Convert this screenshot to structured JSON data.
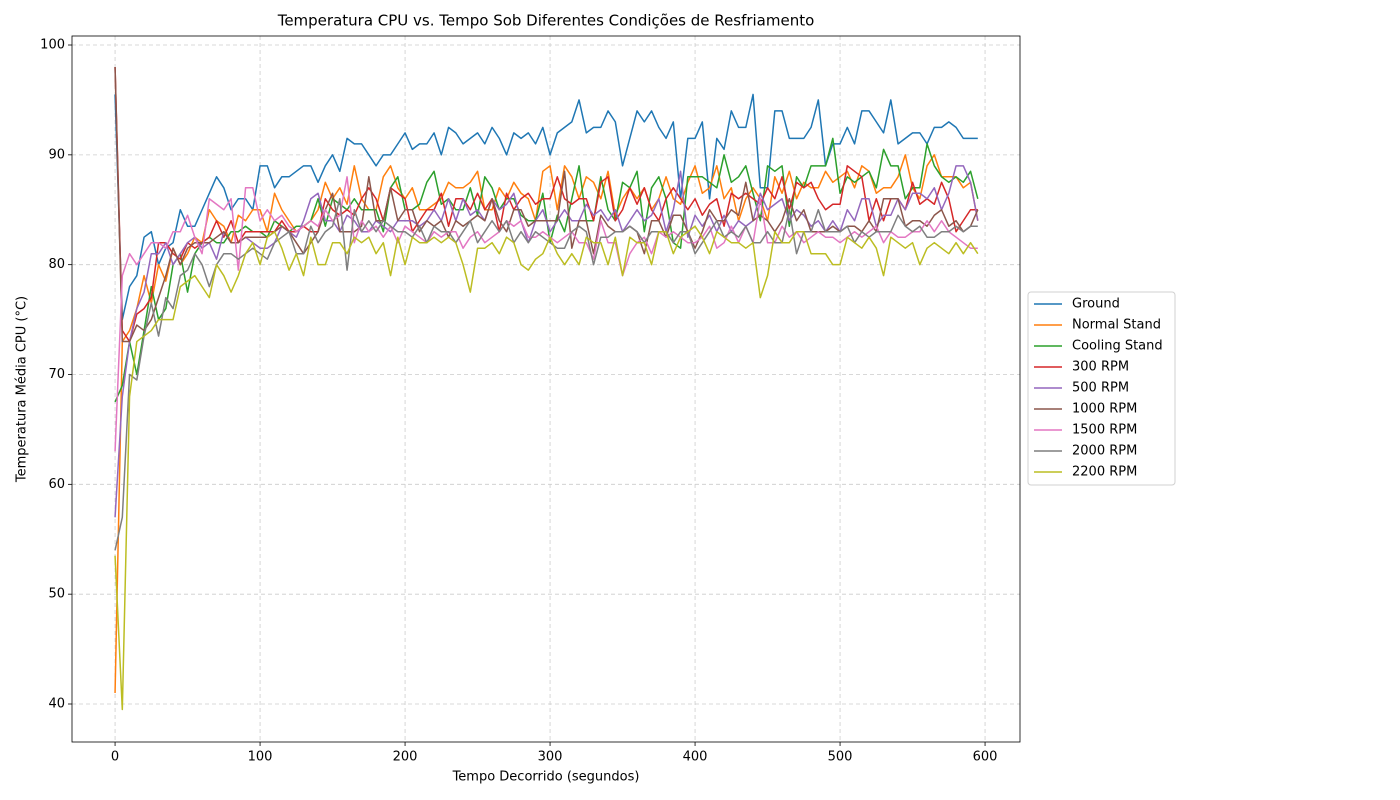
{
  "chart_data": {
    "type": "line",
    "title": "Temperatura CPU vs. Tempo Sob Diferentes Condições de Resfriamento",
    "xlabel": "Tempo Decorrido (segundos)",
    "ylabel": "Temperatura Média CPU (°C)",
    "xlim": [
      -29.7,
      624.1
    ],
    "ylim": [
      36.54,
      100.82
    ],
    "xticks": [
      0,
      100,
      200,
      300,
      400,
      500,
      600
    ],
    "yticks": [
      40,
      50,
      60,
      70,
      80,
      90,
      100
    ],
    "grid": true,
    "legend": "outside right",
    "x": [
      0,
      5,
      10,
      15,
      20,
      25,
      30,
      35,
      40,
      45,
      50,
      55,
      60,
      65,
      70,
      75,
      80,
      85,
      90,
      95,
      100,
      105,
      110,
      115,
      120,
      125,
      130,
      135,
      140,
      145,
      150,
      155,
      160,
      165,
      170,
      175,
      180,
      185,
      190,
      195,
      200,
      205,
      210,
      215,
      220,
      225,
      230,
      235,
      240,
      245,
      250,
      255,
      260,
      265,
      270,
      275,
      280,
      285,
      290,
      295,
      300,
      305,
      310,
      315,
      320,
      325,
      330,
      335,
      340,
      345,
      350,
      355,
      360,
      365,
      370,
      375,
      380,
      385,
      390,
      395,
      400,
      405,
      410,
      415,
      420,
      425,
      430,
      435,
      440,
      445,
      450,
      455,
      460,
      465,
      470,
      475,
      480,
      485,
      490,
      495,
      500,
      505,
      510,
      515,
      520,
      525,
      530,
      535,
      540,
      545,
      550,
      555,
      560,
      565,
      570,
      575,
      580,
      585,
      590,
      595
    ],
    "series": [
      {
        "name": "Ground",
        "color": "#1f77b4",
        "values": [
          95.5,
          75,
          78,
          79,
          82.5,
          83,
          80,
          81.5,
          82,
          85,
          83.5,
          83.5,
          85,
          86.5,
          88,
          87,
          85,
          86,
          86,
          85,
          89,
          89,
          87,
          88,
          88,
          88.5,
          89,
          89,
          87.5,
          89,
          90,
          88.5,
          91.5,
          91,
          91,
          90,
          89,
          90,
          90,
          91,
          92,
          90.5,
          91,
          91,
          92,
          90,
          92.5,
          92,
          91,
          91.5,
          92,
          91,
          92.5,
          91.5,
          90,
          92,
          91.5,
          92,
          91,
          92.5,
          90,
          92,
          92.5,
          93,
          95,
          92,
          92.5,
          92.5,
          94,
          93,
          89,
          91.5,
          94,
          93,
          94,
          92.5,
          91.5,
          93,
          86,
          91.5,
          91.5,
          93,
          86,
          91.5,
          90.5,
          94,
          92.5,
          92.5,
          95.5,
          87,
          87,
          94,
          94,
          91.5,
          91.5,
          91.5,
          92.5,
          95,
          89,
          91,
          91,
          92.5,
          91,
          94,
          94,
          93,
          92,
          95,
          91,
          91.5,
          92,
          92,
          91,
          92.5,
          92.5,
          93,
          92.5,
          91.5,
          91.5,
          91.5
        ]
      },
      {
        "name": "Normal Stand",
        "color": "#ff7f0e",
        "values": [
          41,
          73,
          74,
          76,
          79,
          76.5,
          80,
          78.5,
          81.5,
          80,
          81,
          82.5,
          82,
          85,
          84,
          83.5,
          82,
          84.5,
          84,
          85,
          85,
          83,
          86.5,
          85,
          84,
          83,
          83.5,
          84,
          85,
          87.5,
          86,
          87,
          85.5,
          89,
          86,
          85,
          85,
          88,
          89,
          87,
          86,
          87,
          85,
          85,
          85.5,
          86,
          87.5,
          87,
          87,
          87.5,
          88.5,
          85,
          85,
          87,
          86,
          87.5,
          86.5,
          86,
          84,
          88.5,
          89,
          85,
          89,
          88,
          86,
          88,
          87.5,
          86,
          88.5,
          84.5,
          86,
          87,
          86,
          87,
          85,
          86,
          88,
          86,
          85.5,
          87.5,
          89,
          86.5,
          87,
          89,
          86,
          87,
          84,
          86,
          87,
          86,
          84,
          88,
          86.5,
          88.5,
          86,
          87.5,
          87,
          87,
          88.5,
          87.5,
          88,
          88.5,
          87,
          89,
          88.5,
          86.5,
          87,
          87,
          88,
          90,
          87,
          86,
          89,
          90,
          88,
          88,
          88,
          87,
          87.5,
          84
        ]
      },
      {
        "name": "Cooling Stand",
        "color": "#2ca02c",
        "values": [
          67.5,
          69,
          73,
          70,
          74,
          78,
          75,
          76,
          80,
          81,
          77.5,
          81,
          82,
          82.5,
          82,
          82,
          83,
          83,
          83.5,
          83,
          83,
          82.5,
          84,
          83.5,
          83,
          83.5,
          83.5,
          84,
          86,
          83.5,
          86,
          85.5,
          85,
          86,
          85,
          85,
          85,
          83,
          87,
          88,
          85,
          85,
          85.5,
          87.5,
          88.5,
          85.5,
          86,
          85,
          85,
          87,
          84.5,
          88,
          87,
          85,
          86,
          86,
          84.5,
          84,
          84,
          86.5,
          82,
          84.5,
          83,
          86,
          89,
          84,
          84,
          88,
          85,
          84,
          87.5,
          87,
          88.5,
          83,
          87,
          88,
          86,
          82,
          81.5,
          88,
          88,
          88,
          87.5,
          87,
          90,
          87.5,
          88,
          89,
          86.5,
          84,
          89,
          88.5,
          89,
          83.5,
          88,
          87,
          89,
          89,
          89,
          91.5,
          86.5,
          88,
          87.5,
          88,
          88.5,
          87,
          90.5,
          89,
          89,
          86,
          87,
          87,
          91,
          89,
          88,
          87.5,
          88,
          87.5,
          88.5,
          86
        ]
      },
      {
        "name": "300 RPM",
        "color": "#d62728",
        "values": [
          98,
          74,
          73,
          75.5,
          76,
          77,
          82,
          82,
          81,
          80.5,
          82,
          81.5,
          82,
          82.5,
          84,
          82.5,
          84,
          82,
          83,
          83,
          83,
          83,
          83,
          84,
          83,
          83,
          83.5,
          83,
          83,
          86,
          85,
          84.5,
          85,
          84.5,
          86,
          87,
          86,
          84,
          87,
          86.5,
          86,
          83,
          84,
          85,
          85,
          86.5,
          83.5,
          86,
          86,
          85,
          86.5,
          85,
          86,
          83,
          86.5,
          85,
          86,
          86.5,
          85.5,
          86,
          86,
          88,
          86,
          85.5,
          86,
          86,
          84,
          87.5,
          88,
          84,
          85,
          87,
          85.5,
          87,
          85,
          84,
          86,
          87,
          86,
          85,
          86,
          84.5,
          85.5,
          86,
          83.5,
          86.5,
          86,
          86.5,
          86,
          85.5,
          87,
          86,
          88,
          85,
          87.5,
          87,
          87.5,
          86,
          85,
          85.5,
          85.5,
          89,
          88.5,
          88,
          84,
          86,
          84,
          86,
          86,
          85,
          87.5,
          85.5,
          86,
          85.5,
          87.5,
          86,
          83,
          84,
          85,
          85
        ]
      },
      {
        "name": "500 RPM",
        "color": "#9467bd",
        "values": [
          57,
          68,
          73,
          76,
          77.5,
          81,
          81,
          82,
          80,
          81,
          82,
          82.5,
          81.5,
          82,
          80.5,
          83,
          82,
          82,
          82.5,
          82,
          81.5,
          81.5,
          82,
          83.5,
          83,
          82.5,
          84,
          86,
          86.5,
          84,
          84,
          83,
          84.5,
          84,
          83,
          83,
          84,
          83.5,
          83,
          84,
          84,
          84,
          83.5,
          84,
          85,
          84,
          86,
          84,
          86,
          84.5,
          85,
          84,
          86,
          85,
          85.5,
          86.5,
          84,
          82,
          84,
          85,
          83,
          84,
          85,
          84,
          84,
          85.5,
          84.5,
          85,
          84,
          85,
          83,
          84,
          85,
          84,
          84.5,
          86,
          83,
          85,
          88.5,
          82.5,
          84.5,
          83.5,
          84.5,
          83,
          84.5,
          83,
          84,
          83.5,
          84,
          86.5,
          85,
          85.5,
          86,
          84,
          85,
          84.5,
          83.5,
          84,
          83,
          84,
          83,
          85,
          84,
          86,
          86,
          83.5,
          84.5,
          84.5,
          86,
          85,
          86.5,
          86.5,
          86,
          87,
          85,
          86.5,
          89,
          89,
          87.5,
          84
        ]
      },
      {
        "name": "1000 RPM",
        "color": "#8c564b",
        "values": [
          98,
          73,
          73,
          74.5,
          74,
          75,
          77,
          79,
          81.5,
          80,
          81.5,
          82,
          82,
          82,
          82.5,
          83,
          82,
          82,
          82.5,
          82.5,
          82.5,
          82.5,
          83,
          83.5,
          83,
          82,
          81,
          82,
          83,
          85,
          86.5,
          83,
          83,
          83,
          83.5,
          88,
          84,
          84,
          87,
          84,
          85,
          85,
          83,
          84,
          83.5,
          84,
          82.5,
          84,
          83.5,
          84,
          84.5,
          84,
          86,
          84,
          83,
          85,
          85,
          83.5,
          84,
          84,
          84,
          84,
          88.5,
          81.5,
          84,
          84,
          81,
          84.5,
          83.5,
          83,
          83,
          83.5,
          83,
          81,
          84,
          84,
          82.5,
          84.5,
          84.5,
          83,
          81.5,
          83,
          85,
          84,
          84,
          85,
          84.5,
          87.5,
          84,
          84.5,
          84,
          83,
          84,
          86,
          84,
          85,
          83,
          83,
          83,
          83.5,
          83,
          83.5,
          83.5,
          83,
          84,
          83,
          86,
          86,
          86,
          83.5,
          84,
          84,
          83.5,
          84.5,
          85,
          83.5,
          84,
          83,
          83.5,
          85
        ]
      },
      {
        "name": "1500 RPM",
        "color": "#e377c2",
        "values": [
          63,
          79,
          81,
          80,
          81,
          82,
          82,
          81.5,
          83,
          83,
          84.5,
          82.5,
          81,
          86,
          85.5,
          85,
          86,
          79.5,
          87,
          87,
          84,
          85,
          84,
          84.5,
          83.5,
          83,
          83.5,
          84,
          83.5,
          85,
          84,
          84.5,
          88,
          82,
          84,
          83,
          83.5,
          82.5,
          83.5,
          82,
          83.5,
          83,
          82.5,
          82,
          83,
          82.5,
          83,
          83,
          81.5,
          82.5,
          83,
          82,
          82.5,
          83,
          84,
          83.5,
          84,
          82.5,
          82.5,
          83,
          82.5,
          82,
          82.5,
          83,
          82,
          82,
          80.5,
          84,
          82,
          82,
          79,
          81,
          82,
          82.5,
          81,
          83,
          82.5,
          83,
          82.5,
          82,
          82,
          82.5,
          83.5,
          81.5,
          82,
          83.5,
          82,
          83.5,
          82,
          86,
          82,
          82,
          83.5,
          82.5,
          83,
          82,
          82.5,
          83,
          82.5,
          82.5,
          82,
          82.5,
          83,
          82.5,
          83,
          83.5,
          82,
          83,
          82.5,
          82.5,
          83,
          83,
          84,
          83,
          84,
          83,
          82.5,
          82,
          81.5,
          81.5
        ]
      },
      {
        "name": "2000 RPM",
        "color": "#7f7f7f",
        "values": [
          54,
          57,
          70,
          69.5,
          73.5,
          76.5,
          73.5,
          77,
          76,
          79,
          79.5,
          81,
          80,
          78,
          80,
          81,
          81,
          80.5,
          81,
          81.5,
          81,
          80.5,
          82,
          82.5,
          83,
          81,
          81,
          83.5,
          82,
          83,
          83.5,
          86,
          79.5,
          85,
          83,
          84,
          83,
          84,
          83.5,
          83,
          83,
          82.5,
          83.5,
          82,
          83.5,
          83,
          83,
          82,
          83,
          84,
          82,
          83,
          84,
          83,
          84,
          82,
          83,
          82,
          83,
          82.5,
          82,
          81.5,
          81.5,
          83,
          83.5,
          83,
          80,
          82.5,
          82.5,
          83,
          83,
          83.5,
          83,
          82,
          83,
          83,
          83,
          82,
          83,
          83,
          81,
          82,
          83,
          84,
          82.5,
          83,
          82.5,
          83.5,
          82,
          82,
          83,
          82,
          82,
          85,
          81,
          83,
          83,
          85,
          83,
          83,
          83,
          83.5,
          82,
          83,
          82.5,
          83,
          83,
          83,
          84.5,
          83.5,
          83,
          83.5,
          82.5,
          82.5,
          83,
          83,
          83.5,
          83,
          83.5,
          83.5
        ]
      },
      {
        "name": "2200 RPM",
        "color": "#bcbd22",
        "values": [
          53.5,
          39.5,
          68,
          73,
          73.5,
          74,
          75,
          75,
          75,
          78,
          78.5,
          79,
          78,
          77,
          80,
          79,
          77.5,
          79,
          81,
          82,
          80,
          82.5,
          83,
          81.5,
          79.5,
          81,
          79,
          82.5,
          80,
          80,
          82,
          82,
          81,
          82.5,
          82,
          82.5,
          81,
          82,
          79,
          82.5,
          80,
          82.5,
          82,
          82,
          82.5,
          82,
          82.5,
          82,
          80,
          77.5,
          81.5,
          81.5,
          82,
          81,
          82.5,
          82,
          80,
          79.5,
          80.5,
          81,
          82.5,
          81,
          80,
          81,
          80,
          82.5,
          82,
          82,
          80,
          82.5,
          79,
          82.5,
          82,
          82,
          80,
          83,
          83,
          81,
          82.5,
          83,
          83.5,
          82.5,
          81,
          83,
          82.5,
          82,
          82,
          81.5,
          82,
          77,
          79,
          83,
          82,
          82,
          83,
          83,
          81,
          81,
          81,
          80,
          80,
          82.5,
          82,
          81.5,
          82.5,
          81.5,
          79,
          82.5,
          82,
          81.5,
          82,
          80,
          81.5,
          82,
          81.5,
          81,
          82,
          81,
          82,
          81
        ]
      }
    ]
  }
}
